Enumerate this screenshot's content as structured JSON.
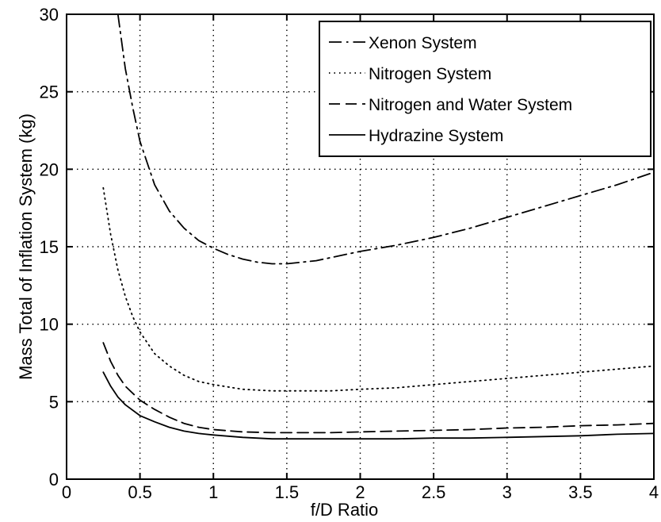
{
  "chart_data": {
    "type": "line",
    "title": "",
    "xlabel": "f/D Ratio",
    "ylabel": "Mass Total of Inflation System (kg)",
    "xlim": [
      0,
      4
    ],
    "ylim": [
      0,
      30
    ],
    "xticks": [
      0,
      0.5,
      1,
      1.5,
      2,
      2.5,
      3,
      3.5,
      4
    ],
    "xtick_labels": [
      "0",
      "0.5",
      "1",
      "1.5",
      "2",
      "2.5",
      "3",
      "3.5",
      "4"
    ],
    "yticks": [
      0,
      5,
      10,
      15,
      20,
      25,
      30
    ],
    "ytick_labels": [
      "0",
      "5",
      "10",
      "15",
      "20",
      "25",
      "30"
    ],
    "grid": true,
    "legend_position": "top-right",
    "series": [
      {
        "name": "Xenon System",
        "line_style": "dashdot",
        "x": [
          0.35,
          0.4,
          0.45,
          0.5,
          0.6,
          0.7,
          0.8,
          0.9,
          1.0,
          1.1,
          1.2,
          1.3,
          1.4,
          1.5,
          1.6,
          1.7,
          1.8,
          1.9,
          2.0,
          2.25,
          2.5,
          2.75,
          3.0,
          3.25,
          3.5,
          3.75,
          4.0
        ],
        "y": [
          30.0,
          26.5,
          24.0,
          21.8,
          19.0,
          17.3,
          16.2,
          15.4,
          14.9,
          14.5,
          14.2,
          14.0,
          13.9,
          13.9,
          14.0,
          14.1,
          14.3,
          14.5,
          14.7,
          15.1,
          15.6,
          16.2,
          16.9,
          17.6,
          18.3,
          19.0,
          19.8
        ]
      },
      {
        "name": "Nitrogen System",
        "line_style": "dotted",
        "x": [
          0.25,
          0.3,
          0.35,
          0.4,
          0.45,
          0.5,
          0.6,
          0.7,
          0.8,
          0.9,
          1.0,
          1.2,
          1.4,
          1.6,
          1.8,
          2.0,
          2.25,
          2.5,
          2.75,
          3.0,
          3.25,
          3.5,
          3.75,
          4.0
        ],
        "y": [
          18.8,
          15.8,
          13.5,
          11.8,
          10.5,
          9.5,
          8.1,
          7.3,
          6.7,
          6.3,
          6.1,
          5.8,
          5.7,
          5.7,
          5.7,
          5.8,
          5.9,
          6.1,
          6.3,
          6.5,
          6.7,
          6.9,
          7.1,
          7.3
        ]
      },
      {
        "name": "Nitrogen and Water System",
        "line_style": "dashed",
        "x": [
          0.25,
          0.3,
          0.35,
          0.4,
          0.5,
          0.6,
          0.7,
          0.8,
          0.9,
          1.0,
          1.2,
          1.4,
          1.6,
          1.8,
          2.0,
          2.25,
          2.5,
          2.75,
          3.0,
          3.25,
          3.5,
          3.75,
          4.0
        ],
        "y": [
          8.8,
          7.6,
          6.7,
          6.0,
          5.1,
          4.5,
          4.0,
          3.6,
          3.35,
          3.2,
          3.05,
          3.0,
          3.0,
          3.0,
          3.05,
          3.1,
          3.15,
          3.2,
          3.3,
          3.35,
          3.45,
          3.5,
          3.6
        ]
      },
      {
        "name": "Hydrazine System",
        "line_style": "solid",
        "x": [
          0.25,
          0.3,
          0.35,
          0.4,
          0.5,
          0.6,
          0.7,
          0.8,
          0.9,
          1.0,
          1.2,
          1.4,
          1.6,
          1.8,
          2.0,
          2.25,
          2.5,
          2.75,
          3.0,
          3.25,
          3.5,
          3.75,
          4.0
        ],
        "y": [
          6.9,
          6.0,
          5.3,
          4.8,
          4.1,
          3.7,
          3.35,
          3.1,
          2.95,
          2.85,
          2.7,
          2.6,
          2.6,
          2.6,
          2.6,
          2.6,
          2.65,
          2.65,
          2.7,
          2.75,
          2.8,
          2.9,
          2.95
        ]
      }
    ]
  }
}
